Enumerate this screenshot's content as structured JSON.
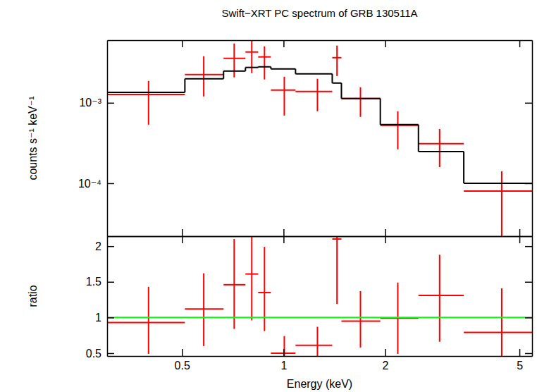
{
  "chart_data": [
    {
      "type": "scatter",
      "title": "Swift−XRT PC spectrum of GRB 130511A",
      "y_label": "counts s⁻¹ keV⁻¹",
      "log": true,
      "tick_labels": "y",
      "xlim": [
        0.3,
        5.45
      ],
      "xticks": [
        0.5,
        1,
        2,
        5
      ],
      "ylim": [
        2.2e-05,
        0.006
      ],
      "yticks": [
        {
          "value": 0.0001,
          "label": "10⁻⁴"
        },
        {
          "value": 0.001,
          "label": "10⁻³"
        }
      ],
      "series": [
        {
          "type": "scatter",
          "marker": "cross",
          "color": "#ff0000",
          "x": [
            0.398,
            0.58,
            0.714,
            0.805,
            0.878,
            1.005,
            1.26,
            1.44,
            1.69,
            2.18,
            2.9,
            4.43
          ],
          "x_lower": [
            0.3,
            0.51,
            0.664,
            0.771,
            0.841,
            0.917,
            1.085,
            1.394,
            1.484,
            1.935,
            2.51,
            3.42
          ],
          "x_upper": [
            0.51,
            0.664,
            0.771,
            0.841,
            0.917,
            1.085,
            1.394,
            1.484,
            1.935,
            2.51,
            3.42,
            5.45
          ],
          "values": [
            0.00127,
            0.00224,
            0.00357,
            0.00428,
            0.00372,
            0.00144,
            0.00138,
            0.00364,
            0.00113,
            0.000524,
            0.00031,
            8e-05
          ],
          "y_lower": [
            0.000535,
            0.0012,
            0.00207,
            0.00234,
            0.00195,
            0.000695,
            0.000785,
            0.00215,
            0.000668,
            0.000264,
            0.000159,
            1e-05
          ],
          "y_upper": [
            0.00187,
            0.00379,
            0.00546,
            0.00628,
            0.00503,
            0.00211,
            0.00199,
            0.00514,
            0.00156,
            0.000785,
            0.000473,
            0.000141
          ]
        },
        {
          "type": "step",
          "color": "#000000",
          "x_lower": [
            0.3,
            0.51,
            0.664,
            0.771,
            0.841,
            0.917,
            1.085,
            1.394,
            1.484,
            1.935,
            2.51,
            3.42
          ],
          "x_upper": [
            0.51,
            0.664,
            0.771,
            0.841,
            0.917,
            1.085,
            1.394,
            1.484,
            1.935,
            2.51,
            3.42,
            5.45
          ],
          "values": [
            0.00135,
            0.00199,
            0.00248,
            0.00275,
            0.0028,
            0.00264,
            0.00229,
            0.00176,
            0.00113,
            0.000535,
            0.000248,
            0.0001
          ]
        }
      ]
    },
    {
      "type": "scatter",
      "x_label": "Energy (keV)",
      "y_label": "ratio",
      "log": "x",
      "xlim": [
        0.3,
        5.45
      ],
      "xticks": [
        0.5,
        1,
        2,
        5
      ],
      "ylim": [
        0.46,
        2.14
      ],
      "yticks": [
        0.5,
        1,
        1.5,
        2
      ],
      "series": [
        {
          "type": "scatter",
          "marker": "cross",
          "color": "#ff0000",
          "x": [
            0.398,
            0.58,
            0.714,
            0.805,
            0.878,
            1.005,
            1.26,
            1.44,
            1.69,
            2.18,
            2.9,
            4.43
          ],
          "x_lower": [
            0.3,
            0.51,
            0.664,
            0.771,
            0.841,
            0.917,
            1.085,
            1.394,
            1.484,
            1.935,
            2.51,
            3.42
          ],
          "x_upper": [
            0.51,
            0.664,
            0.771,
            0.841,
            0.917,
            1.085,
            1.394,
            1.484,
            1.935,
            2.51,
            3.42,
            5.45
          ],
          "values": [
            0.93,
            1.12,
            1.46,
            1.61,
            1.35,
            0.5,
            0.61,
            2.1,
            0.95,
            0.99,
            1.31,
            0.79
          ],
          "y_lower": [
            0.49,
            0.6,
            0.84,
            0.96,
            0.81,
            0.41,
            0.46,
            1.19,
            0.58,
            0.49,
            0.66,
            0.4
          ],
          "y_upper": [
            1.43,
            1.62,
            2.1,
            2.25,
            1.99,
            0.74,
            0.87,
            2.3,
            1.37,
            1.49,
            1.88,
            1.41
          ]
        },
        {
          "type": "hline",
          "color": "#00ff00",
          "values": [
            1
          ]
        }
      ]
    }
  ]
}
